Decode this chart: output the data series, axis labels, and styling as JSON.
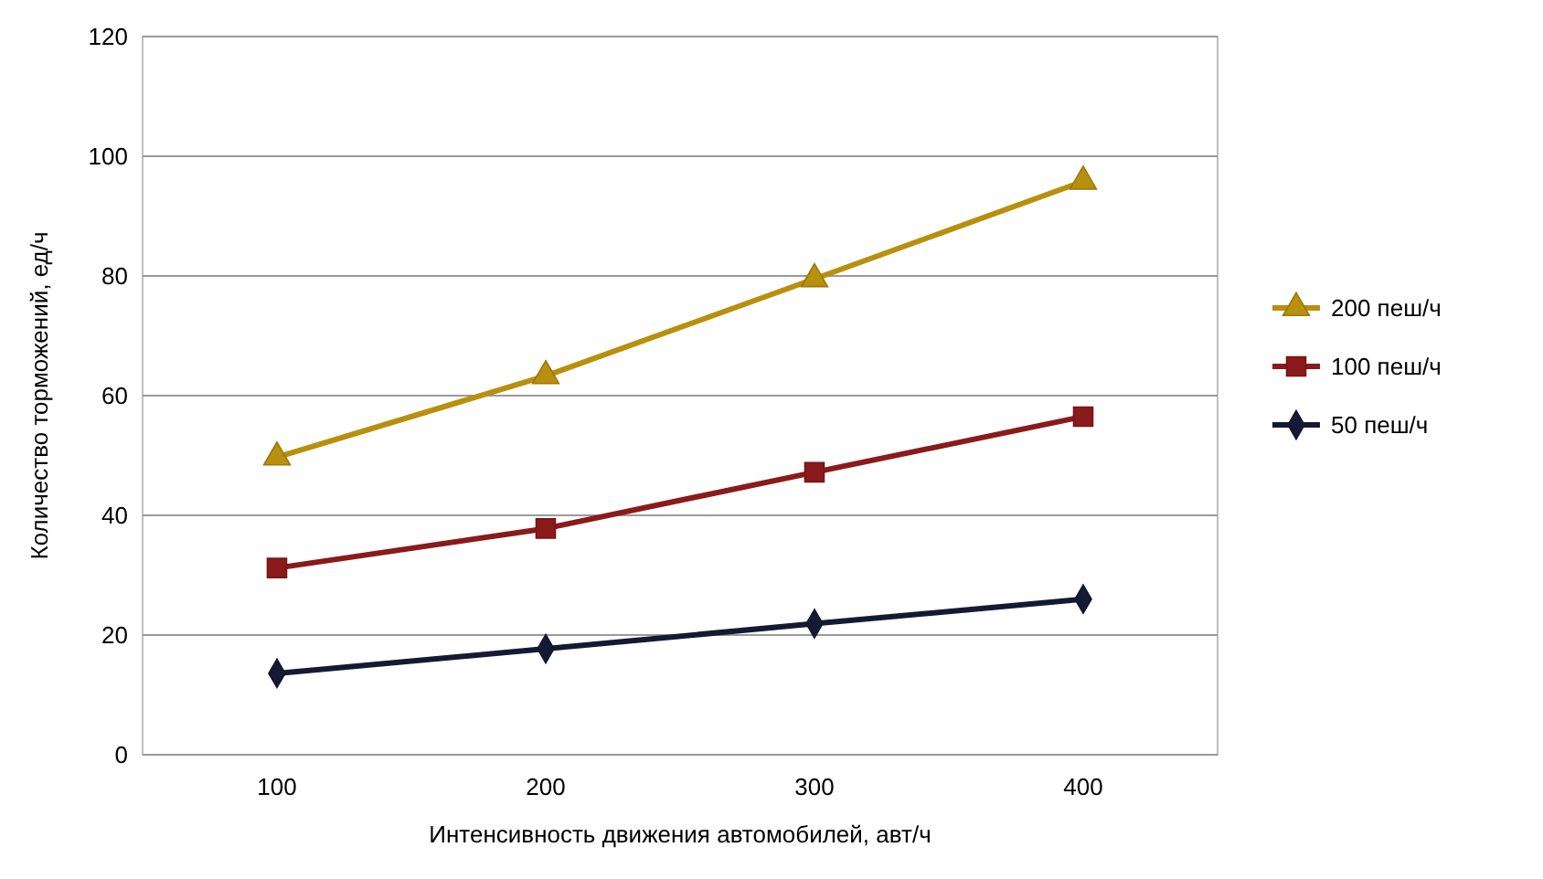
{
  "chart_data": {
    "type": "line",
    "xlabel": "Интенсивность движения автомобилей, авт/ч",
    "ylabel": "Количество торможений, ед/ч",
    "categories": [
      "100",
      "200",
      "300",
      "400"
    ],
    "ylim": [
      0,
      120
    ],
    "yticks": [
      0,
      20,
      40,
      60,
      80,
      100,
      120
    ],
    "grid": "y",
    "legend": "right",
    "series": [
      {
        "name": "200 пеш/ч",
        "color": "#b8900e",
        "marker": "triangle",
        "values": [
          49.7,
          63.3,
          79.5,
          95.8
        ]
      },
      {
        "name": "100 пеш/ч",
        "color": "#8b1a1a",
        "marker": "square",
        "values": [
          31.2,
          37.8,
          47.2,
          56.5
        ]
      },
      {
        "name": "50 пеш/ч",
        "color": "#141a33",
        "marker": "diamond",
        "values": [
          13.6,
          17.7,
          21.9,
          26
        ]
      }
    ]
  }
}
